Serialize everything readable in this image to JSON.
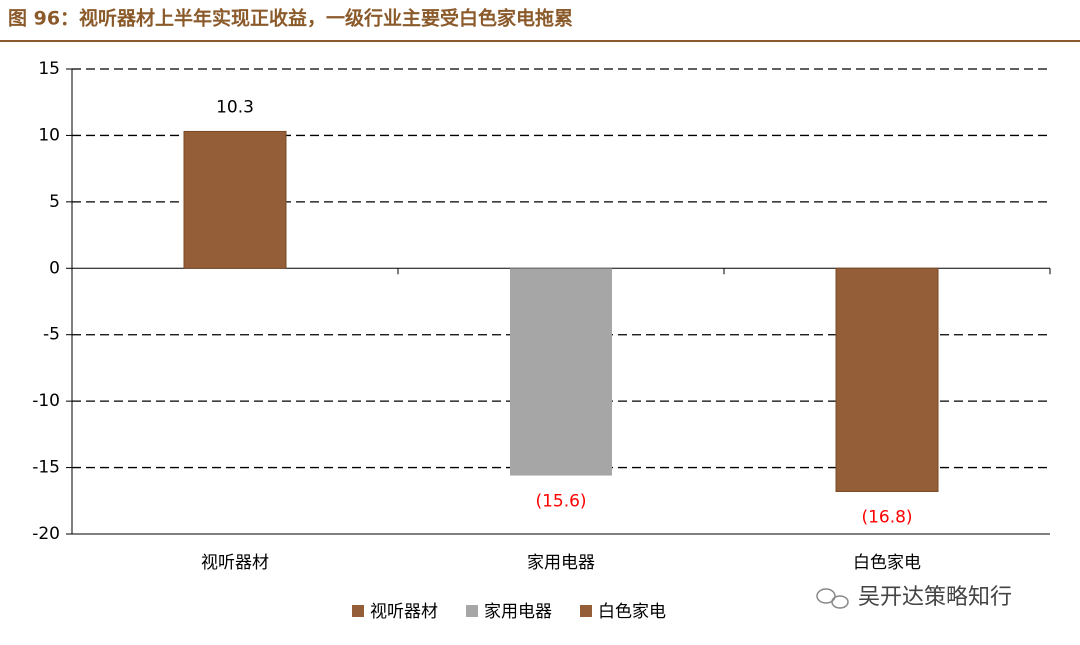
{
  "chart_data": {
    "type": "bar",
    "title": "图 96：视听器材上半年实现正收益，一级行业主要受白色家电拖累",
    "categories": [
      "视听器材",
      "家用电器",
      "白色家电"
    ],
    "values": [
      10.3,
      -15.6,
      -16.8
    ],
    "value_labels": [
      "10.3",
      "(15.6)",
      "(16.8)"
    ],
    "colors": [
      "#935e38",
      "#a6a6a6",
      "#935e38"
    ],
    "label_color": "#000000",
    "negative_label_color": "#ff0000",
    "ylim": [
      -20,
      15
    ],
    "yticks": [
      -20,
      -15,
      -10,
      -5,
      0,
      5,
      10,
      15
    ],
    "grid": true,
    "legend": "bottom",
    "watermark": "吴开达策略知行"
  }
}
